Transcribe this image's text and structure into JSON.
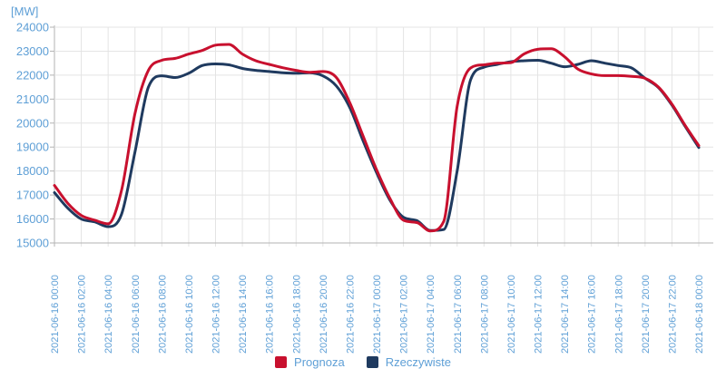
{
  "colors": {
    "text_blue": "#5E9FD6",
    "grid_line": "#E4E4E4",
    "axis_line": "#B3B3B3",
    "background": "#FFFFFF"
  },
  "chart_data": {
    "type": "line",
    "title": "",
    "xlabel": "",
    "ylabel": "[MW]",
    "grid": true,
    "legend_position": "bottom",
    "ylim": [
      15000,
      24000
    ],
    "y_ticks": [
      24000,
      23000,
      22000,
      21000,
      20000,
      19000,
      18000,
      17000,
      16000,
      15000
    ],
    "x_start": "2021-06-16 00:00",
    "x_step_hours": 1,
    "x_tick_labels": [
      "2021-06-16 00:00",
      "2021-06-16 02:00",
      "2021-06-16 04:00",
      "2021-06-16 06:00",
      "2021-06-16 08:00",
      "2021-06-16 10:00",
      "2021-06-16 12:00",
      "2021-06-16 14:00",
      "2021-06-16 16:00",
      "2021-06-16 18:00",
      "2021-06-16 20:00",
      "2021-06-16 22:00",
      "2021-06-17 00:00",
      "2021-06-17 02:00",
      "2021-06-17 04:00",
      "2021-06-17 06:00",
      "2021-06-17 08:00",
      "2021-06-17 10:00",
      "2021-06-17 12:00",
      "2021-06-17 14:00",
      "2021-06-17 16:00",
      "2021-06-17 18:00",
      "2021-06-17 20:00",
      "2021-06-17 22:00",
      "2021-06-18 00:00"
    ],
    "series": [
      {
        "name": "Prognoza",
        "color": "#C8102E",
        "values": [
          17400,
          16650,
          16150,
          15950,
          15800,
          17200,
          20400,
          22200,
          22620,
          22700,
          22880,
          23030,
          23250,
          23280,
          22880,
          22600,
          22450,
          22310,
          22200,
          22120,
          22150,
          21900,
          20850,
          19450,
          18050,
          16850,
          15950,
          15850,
          15500,
          15900,
          20700,
          22300,
          22430,
          22500,
          22520,
          22890,
          23080,
          23100,
          22770,
          22250,
          22050,
          21980,
          21980,
          21950,
          21870,
          21500,
          20790,
          19890,
          19060
        ]
      },
      {
        "name": "Rzeczywiste",
        "color": "#1F3A5F",
        "values": [
          17100,
          16450,
          16000,
          15880,
          15680,
          16200,
          18800,
          21500,
          21970,
          21900,
          22080,
          22400,
          22470,
          22430,
          22280,
          22200,
          22150,
          22100,
          22080,
          22100,
          21970,
          21550,
          20650,
          19250,
          17930,
          16780,
          16070,
          15930,
          15520,
          15560,
          18000,
          21800,
          22330,
          22450,
          22560,
          22600,
          22620,
          22500,
          22350,
          22450,
          22600,
          22500,
          22400,
          22300,
          21870,
          21480,
          20750,
          19850,
          18980
        ]
      }
    ]
  }
}
